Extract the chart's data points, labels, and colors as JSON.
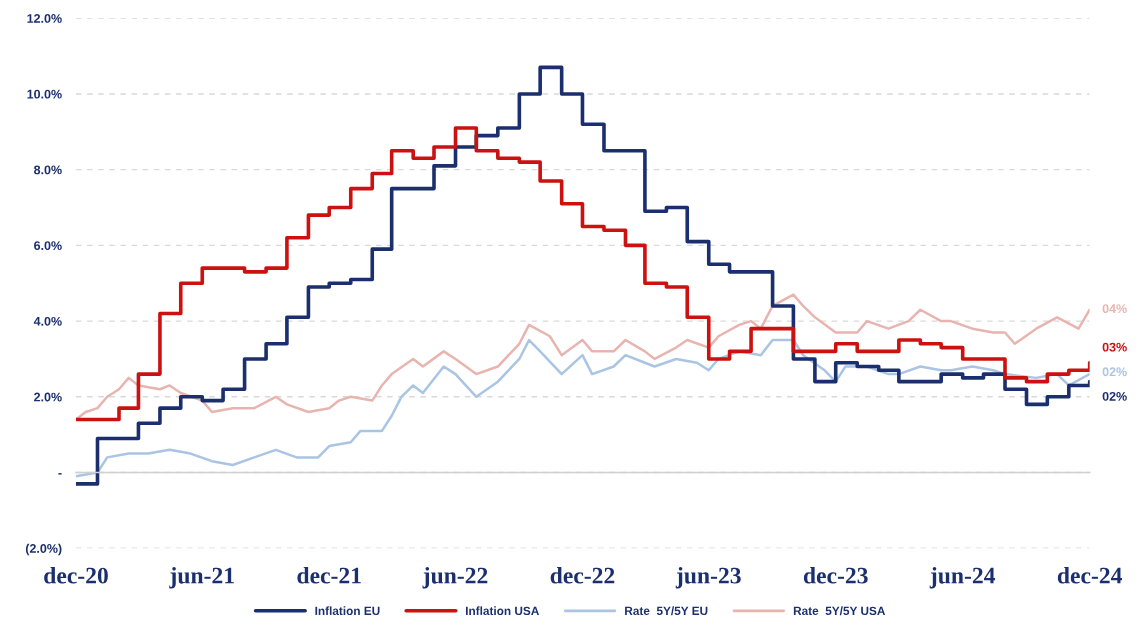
{
  "chart_data": {
    "type": "line",
    "x": [
      "2020-12",
      "2021-01",
      "2021-02",
      "2021-03",
      "2021-04",
      "2021-05",
      "2021-06",
      "2021-07",
      "2021-08",
      "2021-09",
      "2021-10",
      "2021-11",
      "2021-12",
      "2022-01",
      "2022-02",
      "2022-03",
      "2022-04",
      "2022-05",
      "2022-06",
      "2022-07",
      "2022-08",
      "2022-09",
      "2022-10",
      "2022-11",
      "2022-12",
      "2023-01",
      "2023-02",
      "2023-03",
      "2023-04",
      "2023-05",
      "2023-06",
      "2023-07",
      "2023-08",
      "2023-09",
      "2023-10",
      "2023-11",
      "2023-12",
      "2024-01",
      "2024-02",
      "2024-03",
      "2024-04",
      "2024-05",
      "2024-06",
      "2024-07",
      "2024-08",
      "2024-09",
      "2024-10",
      "2024-11",
      "2024-12"
    ],
    "series": [
      {
        "name": "Inflation EU",
        "type": "step",
        "color": "#1b2f6e",
        "values": [
          -0.3,
          0.9,
          0.9,
          1.3,
          1.7,
          2.0,
          1.9,
          2.2,
          3.0,
          3.4,
          4.1,
          4.9,
          5.0,
          5.1,
          5.9,
          7.5,
          7.5,
          8.1,
          8.6,
          8.9,
          9.1,
          10.0,
          10.7,
          10.0,
          9.2,
          8.5,
          8.5,
          6.9,
          7.0,
          6.1,
          5.5,
          5.3,
          5.3,
          4.4,
          3.0,
          2.4,
          2.9,
          2.8,
          2.7,
          2.4,
          2.4,
          2.6,
          2.5,
          2.6,
          2.2,
          1.8,
          2.0,
          2.3,
          2.4
        ]
      },
      {
        "name": "Inflation USA",
        "type": "step",
        "color": "#cc1111",
        "values": [
          1.4,
          1.4,
          1.7,
          2.6,
          4.2,
          5.0,
          5.4,
          5.4,
          5.3,
          5.4,
          6.2,
          6.8,
          7.0,
          7.5,
          7.9,
          8.5,
          8.3,
          8.6,
          9.1,
          8.5,
          8.3,
          8.2,
          7.7,
          7.1,
          6.5,
          6.4,
          6.0,
          5.0,
          4.9,
          4.1,
          3.0,
          3.2,
          3.8,
          3.8,
          3.2,
          3.2,
          3.4,
          3.2,
          3.2,
          3.5,
          3.4,
          3.3,
          3.0,
          3.0,
          2.5,
          2.4,
          2.6,
          2.7,
          2.9
        ]
      },
      {
        "name": "Rate  5Y/5Y EU",
        "color": "#aac4e4",
        "x": [
          "2020-12-01",
          "2021-01-01",
          "2021-01-15",
          "2021-02-15",
          "2021-03-15",
          "2021-04-15",
          "2021-05-15",
          "2021-06-15",
          "2021-07-15",
          "2021-08-15",
          "2021-09-15",
          "2021-10-15",
          "2021-11-15",
          "2021-12-01",
          "2022-01-01",
          "2022-01-15",
          "2022-02-15",
          "2022-03-01",
          "2022-03-15",
          "2022-04-01",
          "2022-04-15",
          "2022-05-15",
          "2022-06-01",
          "2022-07-01",
          "2022-08-01",
          "2022-09-01",
          "2022-09-15",
          "2022-10-01",
          "2022-11-01",
          "2022-12-01",
          "2022-12-15",
          "2023-01-15",
          "2023-02-01",
          "2023-03-01",
          "2023-03-15",
          "2023-04-15",
          "2023-05-15",
          "2023-06-01",
          "2023-06-15",
          "2023-07-15",
          "2023-08-15",
          "2023-09-01",
          "2023-10-01",
          "2023-10-15",
          "2023-11-15",
          "2023-12-01",
          "2023-12-15",
          "2024-01-15",
          "2024-02-15",
          "2024-03-01",
          "2024-04-01",
          "2024-05-01",
          "2024-05-15",
          "2024-06-15",
          "2024-07-15",
          "2024-08-01",
          "2024-09-15",
          "2024-10-15",
          "2024-11-01",
          "2024-12-01"
        ],
        "values": [
          -0.1,
          0.0,
          0.4,
          0.5,
          0.5,
          0.6,
          0.5,
          0.3,
          0.2,
          0.4,
          0.6,
          0.4,
          0.4,
          0.7,
          0.8,
          1.1,
          1.1,
          1.5,
          2.0,
          2.3,
          2.1,
          2.8,
          2.6,
          2.0,
          2.4,
          3.0,
          3.5,
          3.2,
          2.6,
          3.1,
          2.6,
          2.8,
          3.1,
          2.9,
          2.8,
          3.0,
          2.9,
          2.7,
          3.0,
          3.2,
          3.1,
          3.5,
          3.5,
          3.1,
          2.7,
          2.4,
          2.8,
          2.8,
          2.6,
          2.6,
          2.8,
          2.7,
          2.7,
          2.8,
          2.7,
          2.6,
          2.5,
          2.6,
          2.3,
          2.6
        ]
      },
      {
        "name": "Rate  5Y/5Y USA",
        "color": "#e8b4b0",
        "x": [
          "2020-12-01",
          "2020-12-15",
          "2021-01-01",
          "2021-01-15",
          "2021-02-01",
          "2021-02-15",
          "2021-03-01",
          "2021-04-01",
          "2021-04-15",
          "2021-05-01",
          "2021-06-01",
          "2021-06-15",
          "2021-07-15",
          "2021-08-15",
          "2021-09-15",
          "2021-10-01",
          "2021-11-01",
          "2021-12-01",
          "2021-12-15",
          "2022-01-01",
          "2022-02-01",
          "2022-02-15",
          "2022-03-01",
          "2022-04-01",
          "2022-04-15",
          "2022-05-15",
          "2022-06-01",
          "2022-07-01",
          "2022-08-01",
          "2022-09-01",
          "2022-09-15",
          "2022-10-15",
          "2022-11-01",
          "2022-12-01",
          "2022-12-15",
          "2023-01-15",
          "2023-02-01",
          "2023-03-01",
          "2023-03-15",
          "2023-04-15",
          "2023-05-01",
          "2023-06-01",
          "2023-06-15",
          "2023-07-15",
          "2023-08-01",
          "2023-08-15",
          "2023-09-01",
          "2023-10-01",
          "2023-10-15",
          "2023-11-01",
          "2023-12-01",
          "2024-01-01",
          "2024-01-15",
          "2024-02-15",
          "2024-03-15",
          "2024-04-01",
          "2024-05-01",
          "2024-05-15",
          "2024-06-15",
          "2024-07-15",
          "2024-08-01",
          "2024-08-15",
          "2024-09-15",
          "2024-10-15",
          "2024-11-15",
          "2024-12-01"
        ],
        "values": [
          1.4,
          1.6,
          1.7,
          2.0,
          2.2,
          2.5,
          2.3,
          2.2,
          2.3,
          2.1,
          1.9,
          1.6,
          1.7,
          1.7,
          2.0,
          1.8,
          1.6,
          1.7,
          1.9,
          2.0,
          1.9,
          2.3,
          2.6,
          3.0,
          2.8,
          3.2,
          3.0,
          2.6,
          2.8,
          3.4,
          3.9,
          3.6,
          3.1,
          3.5,
          3.2,
          3.2,
          3.5,
          3.2,
          3.0,
          3.3,
          3.5,
          3.3,
          3.6,
          3.9,
          4.0,
          3.8,
          4.4,
          4.7,
          4.4,
          4.1,
          3.7,
          3.7,
          4.0,
          3.8,
          4.0,
          4.3,
          4.0,
          4.0,
          3.8,
          3.7,
          3.7,
          3.4,
          3.8,
          4.1,
          3.8,
          4.3
        ]
      }
    ],
    "xlim": [
      "2020-12",
      "2024-12"
    ],
    "xticks": [
      {
        "value": "2020-12",
        "label": "dec-20"
      },
      {
        "value": "2021-06",
        "label": "jun-21"
      },
      {
        "value": "2021-12",
        "label": "dec-21"
      },
      {
        "value": "2022-06",
        "label": "jun-22"
      },
      {
        "value": "2022-12",
        "label": "dec-22"
      },
      {
        "value": "2023-06",
        "label": "jun-23"
      },
      {
        "value": "2023-12",
        "label": "dec-23"
      },
      {
        "value": "2024-06",
        "label": "jun-24"
      },
      {
        "value": "2024-12",
        "label": "dec-24"
      }
    ],
    "ylim": [
      -2,
      12
    ],
    "yticks": [
      {
        "value": -2,
        "label": "(2.0%)"
      },
      {
        "value": 0,
        "label": "-"
      },
      {
        "value": 2,
        "label": "2.0%"
      },
      {
        "value": 4,
        "label": "4.0%"
      },
      {
        "value": 6,
        "label": "6.0%"
      },
      {
        "value": 8,
        "label": "8.0%"
      },
      {
        "value": 10,
        "label": "10.0%"
      },
      {
        "value": 12,
        "label": "12.0%"
      }
    ],
    "grid": "y",
    "line_style": "solid",
    "marker": "none",
    "legend": "bottom",
    "annotations": [
      {
        "text": "04%",
        "x": "2024-12-01",
        "y": 4.3
      },
      {
        "text": "03%",
        "x": "2024-12",
        "y": 2.9
      },
      {
        "text": "02%",
        "x": "2024-12-01",
        "y": 2.6
      },
      {
        "text": "02%",
        "x": "2024-12",
        "y": 2.4
      }
    ]
  }
}
